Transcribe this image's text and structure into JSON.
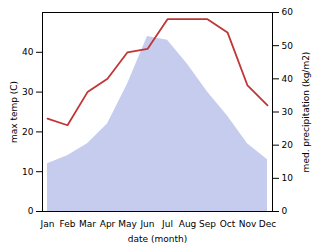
{
  "chart_data": {
    "type": "line",
    "xlabel": "date (month)",
    "ylabel": "max temp (C)",
    "y2label": "med. precipitation (kg/m2)",
    "categories": [
      "Jan",
      "Feb",
      "Mar",
      "Apr",
      "May",
      "Jun",
      "Jul",
      "Aug",
      "Sep",
      "Oct",
      "Nov",
      "Dec"
    ],
    "series": [
      {
        "type": "area",
        "color": "#c5ccee",
        "values": [
          12,
          14,
          17,
          22,
          32,
          44,
          43,
          37,
          30,
          24,
          17,
          13
        ]
      },
      {
        "type": "line",
        "color": "#c03535",
        "axis": "y2",
        "values": [
          28,
          26,
          36,
          40,
          48,
          49,
          58,
          58,
          58,
          54,
          38,
          32
        ]
      }
    ],
    "ylim": [
      0,
      50
    ],
    "yticks": [
      0,
      10,
      20,
      30,
      40
    ],
    "y2lim": [
      0,
      60
    ],
    "y2ticks": [
      0,
      10,
      20,
      30,
      40,
      50,
      60
    ]
  }
}
